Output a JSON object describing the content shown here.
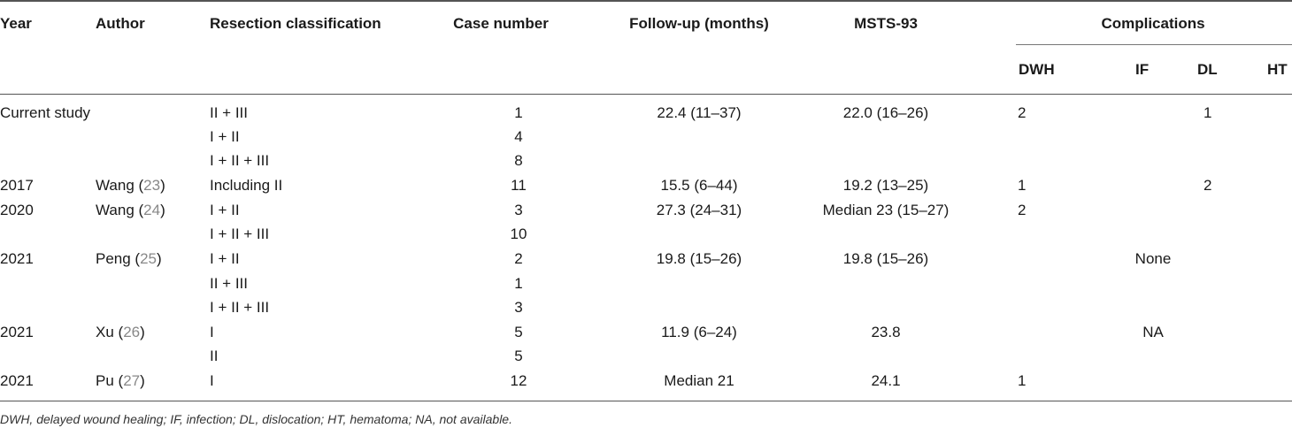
{
  "headers": {
    "year": "Year",
    "author": "Author",
    "resection": "Resection classification",
    "case_number": "Case number",
    "follow_up": "Follow-up (months)",
    "msts": "MSTS-93",
    "complications": "Complications",
    "dwh": "DWH",
    "if": "IF",
    "dl": "DL",
    "ht": "HT"
  },
  "rows": [
    {
      "year": "",
      "author": "Current study",
      "ref": "",
      "resection": "II + III",
      "cases": "1",
      "follow_up": "22.4 (11–37)",
      "msts": "22.0 (16–26)",
      "dwh": "2",
      "if": "",
      "dl": "1",
      "ht": "",
      "span": ""
    },
    {
      "year": "",
      "author": "",
      "ref": "",
      "resection": "I + II",
      "cases": "4",
      "follow_up": "",
      "msts": "",
      "dwh": "",
      "if": "",
      "dl": "",
      "ht": "",
      "span": ""
    },
    {
      "year": "",
      "author": "",
      "ref": "",
      "resection": "I + II + III",
      "cases": "8",
      "follow_up": "",
      "msts": "",
      "dwh": "",
      "if": "",
      "dl": "",
      "ht": "",
      "span": ""
    },
    {
      "year": "2017",
      "author": "Wang (",
      "ref": "23",
      "resection": "Including II",
      "cases": "11",
      "follow_up": "15.5 (6–44)",
      "msts": "19.2 (13–25)",
      "dwh": "1",
      "if": "",
      "dl": "2",
      "ht": "",
      "span": ""
    },
    {
      "year": "2020",
      "author": "Wang (",
      "ref": "24",
      "resection": "I + II",
      "cases": "3",
      "follow_up": "27.3 (24–31)",
      "msts": "Median 23 (15–27)",
      "dwh": "2",
      "if": "",
      "dl": "",
      "ht": "",
      "span": ""
    },
    {
      "year": "",
      "author": "",
      "ref": "",
      "resection": "I + II + III",
      "cases": "10",
      "follow_up": "",
      "msts": "",
      "dwh": "",
      "if": "",
      "dl": "",
      "ht": "",
      "span": ""
    },
    {
      "year": "2021",
      "author": "Peng (",
      "ref": "25",
      "resection": "I + II",
      "cases": "2",
      "follow_up": "19.8 (15–26)",
      "msts": "19.8 (15–26)",
      "dwh": "",
      "if": "",
      "dl": "",
      "ht": "",
      "span": "None"
    },
    {
      "year": "",
      "author": "",
      "ref": "",
      "resection": "II + III",
      "cases": "1",
      "follow_up": "",
      "msts": "",
      "dwh": "",
      "if": "",
      "dl": "",
      "ht": "",
      "span": ""
    },
    {
      "year": "",
      "author": "",
      "ref": "",
      "resection": "I + II + III",
      "cases": "3",
      "follow_up": "",
      "msts": "",
      "dwh": "",
      "if": "",
      "dl": "",
      "ht": "",
      "span": ""
    },
    {
      "year": "2021",
      "author": "Xu (",
      "ref": "26",
      "resection": "I",
      "cases": "5",
      "follow_up": "11.9 (6–24)",
      "msts": "23.8",
      "dwh": "",
      "if": "",
      "dl": "",
      "ht": "",
      "span": "NA"
    },
    {
      "year": "",
      "author": "",
      "ref": "",
      "resection": "II",
      "cases": "5",
      "follow_up": "",
      "msts": "",
      "dwh": "",
      "if": "",
      "dl": "",
      "ht": "",
      "span": ""
    },
    {
      "year": "2021",
      "author": "Pu (",
      "ref": "27",
      "resection": "I",
      "cases": "12",
      "follow_up": "Median 21",
      "msts": "24.1",
      "dwh": "1",
      "if": "",
      "dl": "",
      "ht": "",
      "span": ""
    }
  ],
  "footnote": "DWH, delayed wound healing; IF, infection; DL, dislocation; HT, hematoma; NA, not available."
}
